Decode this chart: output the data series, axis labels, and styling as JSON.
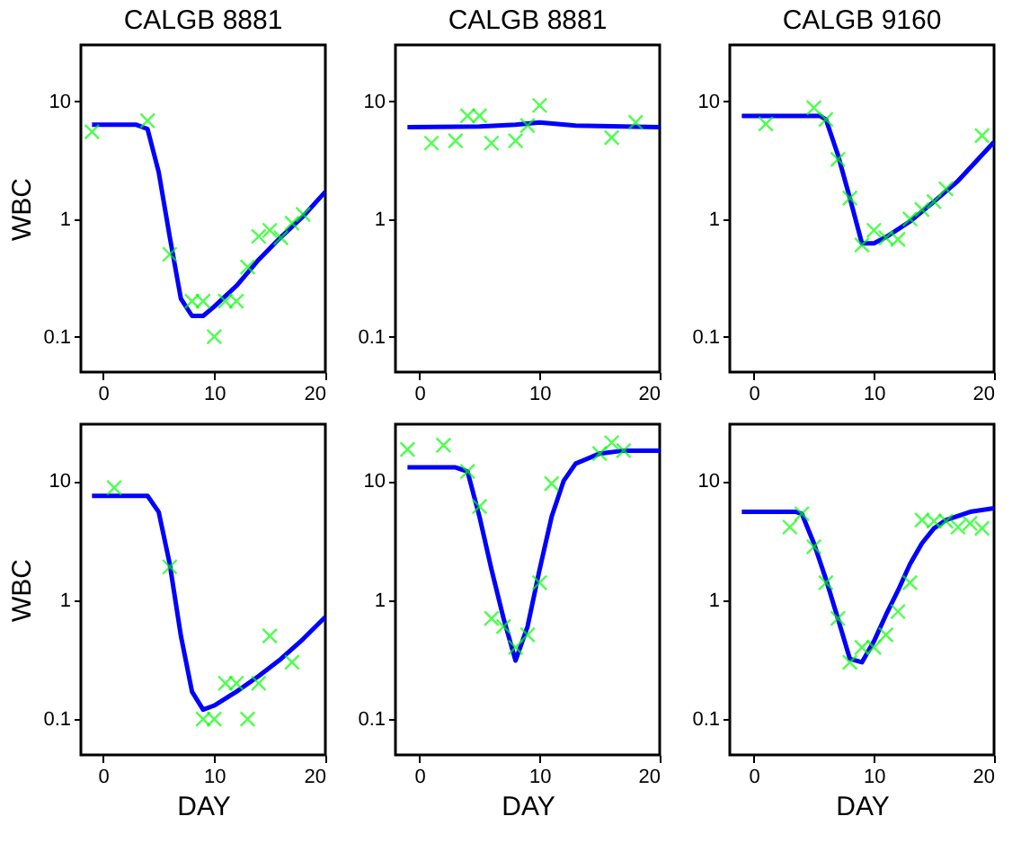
{
  "chart_data": [
    {
      "type": "line",
      "title": "CALGB 8881",
      "ylabel": "WBC",
      "xlim": [
        -2,
        20
      ],
      "ylim": [
        0.05,
        30
      ],
      "xticks": [
        0,
        10,
        20
      ],
      "yticks": [
        0.1,
        1,
        10
      ],
      "log": "y",
      "series": [
        {
          "type": "line",
          "color": "#0000ff",
          "x": [
            -1,
            3,
            4,
            5,
            6,
            7,
            8,
            9,
            10,
            12,
            14,
            16,
            18,
            20
          ],
          "values": [
            6.3,
            6.3,
            5.8,
            2.5,
            0.7,
            0.21,
            0.15,
            0.15,
            0.18,
            0.27,
            0.45,
            0.7,
            1.05,
            1.7
          ]
        },
        {
          "type": "scatter",
          "marker": "cross",
          "color": "#00ff00",
          "x": [
            -1,
            4,
            6,
            8,
            9,
            10,
            11,
            12,
            13,
            14,
            15,
            16,
            17,
            18
          ],
          "values": [
            5.5,
            6.8,
            0.5,
            0.2,
            0.2,
            0.1,
            0.2,
            0.2,
            0.39,
            0.71,
            0.8,
            0.69,
            0.92,
            1.09
          ]
        }
      ]
    },
    {
      "type": "line",
      "title": "CALGB 8881",
      "xlim": [
        -2,
        20
      ],
      "ylim": [
        0.05,
        30
      ],
      "xticks": [
        0,
        10,
        20
      ],
      "yticks": [
        0.1,
        1,
        10
      ],
      "log": "y",
      "series": [
        {
          "type": "line",
          "color": "#0000ff",
          "x": [
            -1,
            5,
            8,
            10,
            13,
            20
          ],
          "values": [
            6,
            6.1,
            6.3,
            6.6,
            6.2,
            6
          ]
        },
        {
          "type": "scatter",
          "marker": "cross",
          "color": "#00ff00",
          "x": [
            1,
            3,
            4,
            5,
            6,
            8,
            9,
            10,
            16,
            18
          ],
          "values": [
            4.4,
            4.6,
            7.5,
            7.5,
            4.4,
            4.6,
            6.2,
            9.2,
            4.9,
            6.6
          ]
        }
      ]
    },
    {
      "type": "line",
      "title": "CALGB 9160",
      "xlim": [
        -2,
        20
      ],
      "ylim": [
        0.05,
        30
      ],
      "xticks": [
        0,
        10,
        20
      ],
      "yticks": [
        0.1,
        1,
        10
      ],
      "log": "y",
      "series": [
        {
          "type": "line",
          "color": "#0000ff",
          "x": [
            -1,
            5.5,
            6,
            7,
            8,
            9,
            10,
            11,
            13,
            15,
            17,
            20
          ],
          "values": [
            7.5,
            7.5,
            7,
            3.5,
            1.5,
            0.62,
            0.62,
            0.7,
            0.95,
            1.4,
            2.1,
            4.5
          ]
        },
        {
          "type": "scatter",
          "marker": "cross",
          "color": "#00ff00",
          "x": [
            1,
            5,
            6,
            7,
            8,
            9,
            10,
            11,
            12,
            13,
            14,
            15,
            16,
            19
          ],
          "values": [
            6.4,
            8.8,
            7,
            3.2,
            1.5,
            0.6,
            0.8,
            0.69,
            0.67,
            1,
            1.2,
            1.4,
            1.8,
            5.1
          ]
        }
      ]
    },
    {
      "type": "line",
      "xlabel": "DAY",
      "ylabel": "WBC",
      "xlim": [
        -2,
        20
      ],
      "ylim": [
        0.05,
        30
      ],
      "xticks": [
        0,
        10,
        20
      ],
      "yticks": [
        0.1,
        1,
        10
      ],
      "log": "y",
      "series": [
        {
          "type": "line",
          "color": "#0000ff",
          "x": [
            -1,
            4,
            5,
            6,
            7,
            8,
            9,
            10,
            12,
            14,
            16,
            18,
            20
          ],
          "values": [
            7.5,
            7.5,
            5.5,
            2,
            0.5,
            0.17,
            0.12,
            0.13,
            0.17,
            0.23,
            0.32,
            0.47,
            0.72
          ]
        },
        {
          "type": "scatter",
          "marker": "cross",
          "color": "#00ff00",
          "x": [
            1,
            6,
            9,
            10,
            11,
            12,
            13,
            14,
            15,
            17
          ],
          "values": [
            8.8,
            1.9,
            0.1,
            0.1,
            0.2,
            0.2,
            0.1,
            0.2,
            0.5,
            0.3
          ]
        }
      ]
    },
    {
      "type": "line",
      "xlabel": "DAY",
      "xlim": [
        -2,
        20
      ],
      "ylim": [
        0.05,
        30
      ],
      "xticks": [
        0,
        10,
        20
      ],
      "yticks": [
        0.1,
        1,
        10
      ],
      "log": "y",
      "series": [
        {
          "type": "line",
          "color": "#0000ff",
          "x": [
            -1,
            3,
            4,
            5,
            6,
            7,
            8,
            9,
            10,
            11,
            12,
            13,
            15,
            17,
            20
          ],
          "values": [
            13,
            13,
            12,
            5,
            1.8,
            0.7,
            0.31,
            0.6,
            1.8,
            5,
            10,
            14,
            17,
            18,
            18
          ]
        },
        {
          "type": "scatter",
          "marker": "cross",
          "color": "#00ff00",
          "x": [
            -1,
            2,
            4,
            5,
            6,
            7,
            8,
            9,
            10,
            11,
            15,
            16,
            17
          ],
          "values": [
            18.4,
            20,
            12,
            6.1,
            0.7,
            0.6,
            0.4,
            0.51,
            1.4,
            9.5,
            17,
            21,
            18
          ]
        }
      ]
    },
    {
      "type": "line",
      "xlabel": "DAY",
      "xlim": [
        -2,
        20
      ],
      "ylim": [
        0.05,
        30
      ],
      "xticks": [
        0,
        10,
        20
      ],
      "yticks": [
        0.1,
        1,
        10
      ],
      "log": "y",
      "series": [
        {
          "type": "line",
          "color": "#0000ff",
          "x": [
            -1,
            3.5,
            4,
            5,
            6,
            7,
            8,
            9,
            10,
            11,
            12,
            13,
            14,
            15,
            16,
            18,
            20
          ],
          "values": [
            5.5,
            5.5,
            5.3,
            3,
            1.5,
            0.7,
            0.32,
            0.3,
            0.45,
            0.75,
            1.2,
            2,
            3,
            4,
            4.7,
            5.5,
            5.9
          ]
        },
        {
          "type": "scatter",
          "marker": "cross",
          "color": "#00ff00",
          "x": [
            3,
            4,
            5,
            6,
            7,
            8,
            9,
            10,
            11,
            12,
            13,
            14,
            15,
            16,
            17,
            18,
            19
          ],
          "values": [
            4.1,
            5.3,
            2.8,
            1.4,
            0.7,
            0.3,
            0.4,
            0.4,
            0.51,
            0.8,
            1.4,
            4.7,
            4.6,
            4.6,
            4.1,
            4.4,
            4
          ]
        }
      ]
    }
  ]
}
